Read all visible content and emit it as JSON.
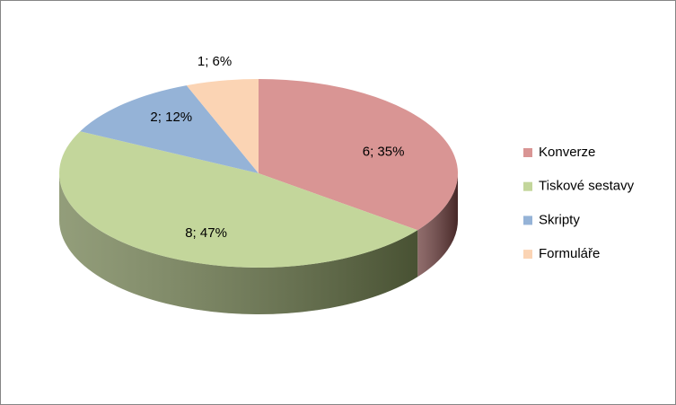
{
  "chart_data": {
    "type": "pie",
    "three_d": true,
    "categories": [
      "Konverze",
      "Tiskové sestavy",
      "Skripty",
      "Formuláře"
    ],
    "values": [
      6,
      8,
      2,
      1
    ],
    "value_labels": [
      "6; 35%",
      "8; 47%",
      "2; 12%",
      "1; 6%"
    ],
    "colors": [
      "#d99594",
      "#c3d69b",
      "#95b3d7",
      "#fbd4b4"
    ],
    "side_colors": [
      "#6b3c3b",
      "#6f7d4e",
      "#4c6a8f",
      "#b08a6a"
    ],
    "legend": "right"
  }
}
